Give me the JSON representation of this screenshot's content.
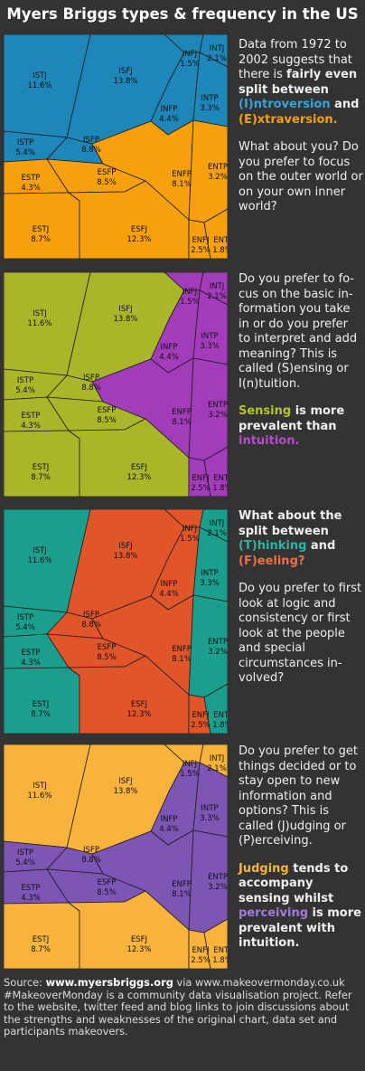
{
  "title": "Myers Briggs types & frequency in the US",
  "colors": {
    "introversion": "#1f86b8",
    "extraversion": "#f5a00c",
    "sensing": "#a9b62a",
    "intuition": "#a33cba",
    "thinking": "#1b9e8e",
    "feeling": "#e0562a",
    "judging": "#f8b33c",
    "perceiving": "#7d55b5",
    "text_intro": "#3aa3da",
    "text_extra": "#f5a00c",
    "text_sens": "#b7c22d",
    "text_intu": "#b84ad0",
    "text_think": "#2fb3a2",
    "text_feel": "#f07040",
    "text_judg": "#f8b33c",
    "text_perc": "#a07be0"
  },
  "chart_data": {
    "type": "voronoi-treemap",
    "unit": "%",
    "cells": [
      {
        "type": "ISTJ",
        "value": 11.6
      },
      {
        "type": "ISFJ",
        "value": 13.8
      },
      {
        "type": "INFJ",
        "value": 1.5
      },
      {
        "type": "INTJ",
        "value": 2.1
      },
      {
        "type": "ISTP",
        "value": 5.4
      },
      {
        "type": "ISFP",
        "value": 8.8
      },
      {
        "type": "INFP",
        "value": 4.4
      },
      {
        "type": "INTP",
        "value": 3.3
      },
      {
        "type": "ESTP",
        "value": 4.3
      },
      {
        "type": "ESFP",
        "value": 8.5
      },
      {
        "type": "ENFP",
        "value": 8.1
      },
      {
        "type": "ENTP",
        "value": 3.2
      },
      {
        "type": "ESTJ",
        "value": 8.7
      },
      {
        "type": "ESFJ",
        "value": 12.3
      },
      {
        "type": "ENFJ",
        "value": 2.5
      },
      {
        "type": "ENTJ",
        "value": 1.8
      }
    ],
    "panels": [
      {
        "dimension": "Introversion / Extraversion",
        "groups": [
          "I",
          "E"
        ]
      },
      {
        "dimension": "Sensing / Intuition",
        "groups": [
          "S",
          "N"
        ]
      },
      {
        "dimension": "Thinking / Feeling",
        "groups": [
          "T",
          "F"
        ]
      },
      {
        "dimension": "Judging / Perceiving",
        "groups": [
          "J",
          "P"
        ]
      }
    ]
  },
  "panel1": {
    "p1": "Data from 1972 to 2002 suggests that there is ",
    "p1_bold": "fairly even split between",
    "p1_intro": "(I)ntroversion",
    "p1_and": " and",
    "p1_extra": "(E)xtraversion.",
    "p2": "What about you? Do you prefer to focus on the outer world or on your own in­ner world?"
  },
  "panel2": {
    "p1": "Do you prefer to fo­cus on the basic in­formation you take in or do you prefer to interpret and add meaning? This is called (S)ensing or I(n)tuition.",
    "p2_sens": "Sensing",
    "p2_mid": " is more prevalent than ",
    "p2_intu": "intuition."
  },
  "panel3": {
    "p1": "What about the split between",
    "p1_think": "(T)hinking",
    "p1_and": " and",
    "p1_feel": "(F)eeling?",
    "p2": "Do you prefer to first look at logic and consistency or first look at the people and special circumstances in­volved?"
  },
  "panel4": {
    "p1": "Do you prefer to get things decided or to stay open to new information and options? This is called (J)udging or (P)erceiving.",
    "p2_judg": "Judging",
    "p2_mid": " tends to accompany sensing whilst ",
    "p2_perc": "perceiving",
    "p2_end": " is more prevalent with intuition."
  },
  "footer": {
    "source_label": "Source: ",
    "source_site": "www.myersbriggs.org",
    "via": " via www.makeovermonday.co.uk",
    "body": "#MakeoverMonday is a community data visualisation project. Refer to the website, twitter feed and blog links to join discussions about the strengths and weaknesses of the original chart, data set and participants makeovers."
  }
}
